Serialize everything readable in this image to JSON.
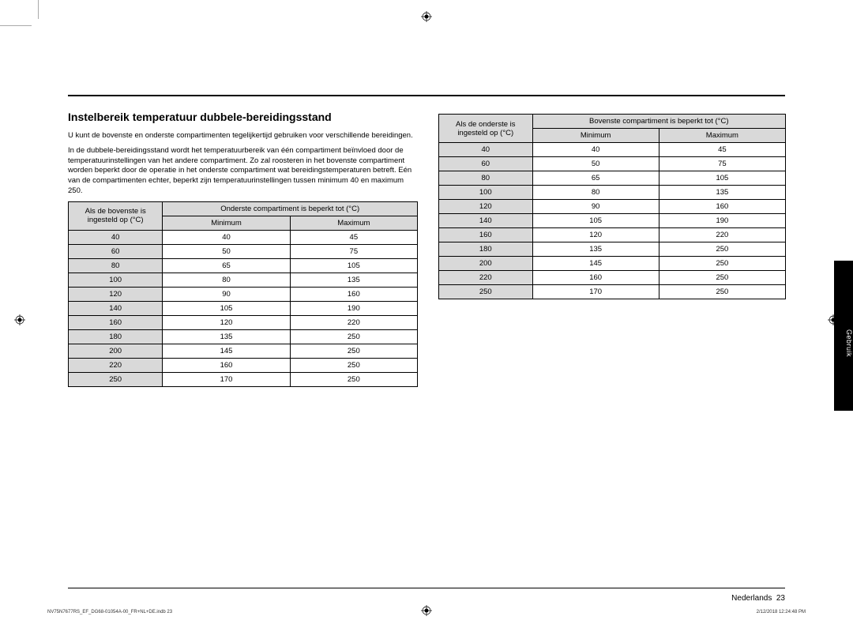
{
  "heading": "Instelbereik temperatuur dubbele-bereidingsstand",
  "para1": "U kunt de bovenste en onderste compartimenten tegelijkertijd gebruiken voor verschillende bereidingen.",
  "para2": "In de dubbele-bereidingsstand wordt het temperatuurbereik van één compartiment beïnvloed door de temperatuurinstellingen van het andere compartiment. Zo zal roosteren in het bovenste compartiment worden beperkt door de operatie in het onderste compartiment wat bereidingstemperaturen betreft. Eén van de compartimenten echter, beperkt zijn temperatuurinstellingen tussen minimum 40 en maximum 250.",
  "table_left": {
    "header_left": "Als de bovenste is ingesteld op (°C)",
    "header_span": "Onderste compartiment is beperkt tot (°C)",
    "sub_min": "Minimum",
    "sub_max": "Maximum",
    "rows": [
      [
        "40",
        "40",
        "45"
      ],
      [
        "60",
        "50",
        "75"
      ],
      [
        "80",
        "65",
        "105"
      ],
      [
        "100",
        "80",
        "135"
      ],
      [
        "120",
        "90",
        "160"
      ],
      [
        "140",
        "105",
        "190"
      ],
      [
        "160",
        "120",
        "220"
      ],
      [
        "180",
        "135",
        "250"
      ],
      [
        "200",
        "145",
        "250"
      ],
      [
        "220",
        "160",
        "250"
      ],
      [
        "250",
        "170",
        "250"
      ]
    ]
  },
  "table_right": {
    "header_left": "Als de onderste is ingesteld op (°C)",
    "header_span": "Bovenste compartiment is beperkt tot (°C)",
    "sub_min": "Minimum",
    "sub_max": "Maximum",
    "rows": [
      [
        "40",
        "40",
        "45"
      ],
      [
        "60",
        "50",
        "75"
      ],
      [
        "80",
        "65",
        "105"
      ],
      [
        "100",
        "80",
        "135"
      ],
      [
        "120",
        "90",
        "160"
      ],
      [
        "140",
        "105",
        "190"
      ],
      [
        "160",
        "120",
        "220"
      ],
      [
        "180",
        "135",
        "250"
      ],
      [
        "200",
        "145",
        "250"
      ],
      [
        "220",
        "160",
        "250"
      ],
      [
        "250",
        "170",
        "250"
      ]
    ]
  },
  "side_tab": "Gebruik",
  "footer_lang": "Nederlands  23",
  "footer_file": "NV75N7677RS_EF_DG68-01054A-00_FR+NL+DE.indb   23",
  "footer_date": "2/12/2018   12:24:48 PM",
  "colors": {
    "header_bg": "#d9d9d9",
    "border": "#000000"
  },
  "col_widths_pct": [
    27,
    36.5,
    36.5
  ]
}
